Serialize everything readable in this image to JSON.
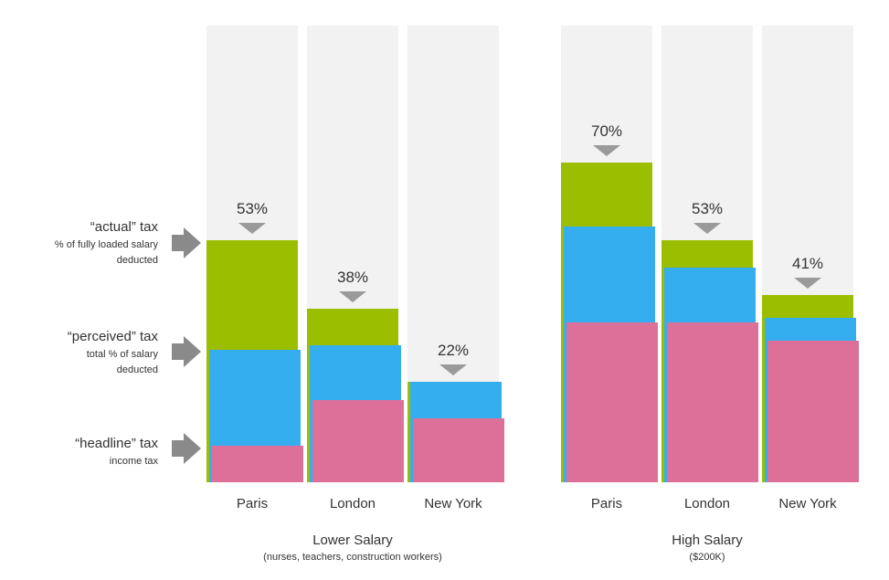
{
  "chart_data": {
    "type": "bar",
    "ylim": [
      0,
      100
    ],
    "colors": {
      "background_bar": "#f2f2f2",
      "actual": "#9bbf00",
      "perceived": "#35aef0",
      "headline": "#dc7099",
      "marker": "#9a9a9a",
      "arrow": "#8a8a8a"
    },
    "legend": [
      {
        "key": "actual",
        "title": "“actual” tax",
        "lines": [
          "% of fully loaded salary",
          "deducted"
        ]
      },
      {
        "key": "perceived",
        "title": "“perceived” tax",
        "lines": [
          "total % of salary",
          "deducted"
        ]
      },
      {
        "key": "headline",
        "title": "“headline” tax",
        "lines": [
          "income tax"
        ]
      }
    ],
    "groups": [
      {
        "title": "Lower Salary",
        "subtitle": "(nurses, teachers, construction workers)",
        "categories": [
          "Paris",
          "London",
          "New York"
        ],
        "series": [
          {
            "key": "actual",
            "values": [
              53,
              38,
              22
            ]
          },
          {
            "key": "perceived",
            "values": [
              29,
              30,
              22
            ]
          },
          {
            "key": "headline",
            "values": [
              8,
              18,
              14
            ]
          }
        ],
        "labels": [
          "53%",
          "38%",
          "22%"
        ]
      },
      {
        "title": "High Salary",
        "subtitle": "($200K)",
        "categories": [
          "Paris",
          "London",
          "New York"
        ],
        "series": [
          {
            "key": "actual",
            "values": [
              70,
              53,
              41
            ]
          },
          {
            "key": "perceived",
            "values": [
              56,
              47,
              36
            ]
          },
          {
            "key": "headline",
            "values": [
              35,
              35,
              31
            ]
          }
        ],
        "labels": [
          "70%",
          "53%",
          "41%"
        ]
      }
    ]
  }
}
